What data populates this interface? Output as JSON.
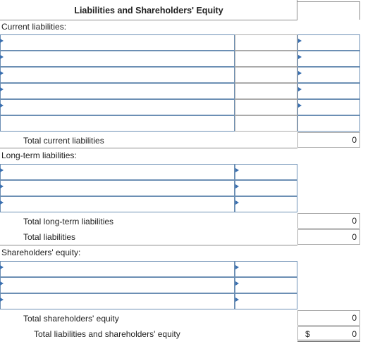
{
  "title": "Liabilities and Shareholders' Equity",
  "current": {
    "heading": "Current liabilities:",
    "total_label": "Total current liabilities",
    "total_value": "0"
  },
  "longterm": {
    "heading": "Long-term liabilities:",
    "total_label": "Total long-term liabilities",
    "total_value": "0"
  },
  "total_liabilities": {
    "label": "Total liabilities",
    "value": "0"
  },
  "equity": {
    "heading": "Shareholders' equity:",
    "total_label": "Total shareholders' equity",
    "total_value": "0"
  },
  "grand_total": {
    "label": "Total liabilities and shareholders' equity",
    "currency": "$",
    "value": "0"
  }
}
